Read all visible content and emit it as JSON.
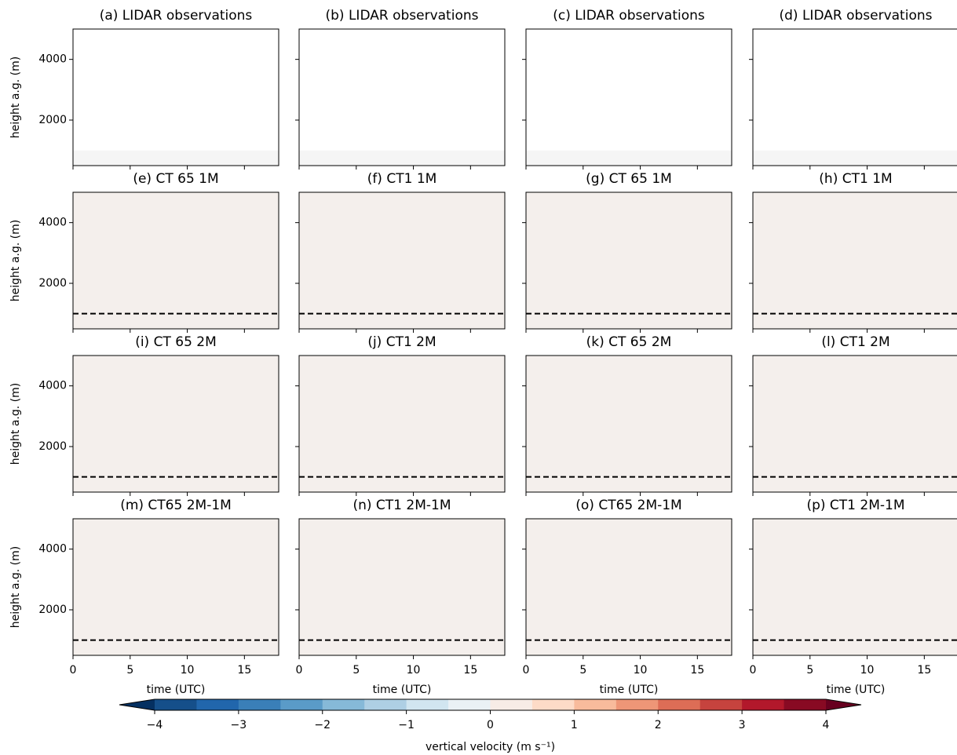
{
  "chart_data": {
    "type": "contour",
    "xlabel": "time (UTC)",
    "ylabel": "height a.g. (m)",
    "xlim": [
      0,
      18
    ],
    "ylim": [
      500,
      5000
    ],
    "xticks": [
      0,
      5,
      10,
      15
    ],
    "yticks": [
      2000,
      4000
    ],
    "panels": [
      {
        "title": "(a) LIDAR observations"
      },
      {
        "title": "(b) LIDAR observations"
      },
      {
        "title": "(c) LIDAR observations"
      },
      {
        "title": "(d) LIDAR observations"
      },
      {
        "title": "(e) CT 65 1M",
        "hline": 1000
      },
      {
        "title": "(f) CT1 1M",
        "hline": 1000
      },
      {
        "title": "(g) CT 65 1M",
        "hline": 1000
      },
      {
        "title": "(h) CT1 1M",
        "hline": 1000
      },
      {
        "title": "(i) CT 65 2M",
        "hline": 1000
      },
      {
        "title": "(j) CT1 2M",
        "hline": 1000
      },
      {
        "title": "(k) CT 65 2M",
        "hline": 1000
      },
      {
        "title": "(l) CT1 2M",
        "hline": 1000
      },
      {
        "title": "(m) CT65 2M-1M",
        "hline": 1000
      },
      {
        "title": "(n) CT1 2M-1M",
        "hline": 1000
      },
      {
        "title": "(o) CT65 2M-1M",
        "hline": 1000
      },
      {
        "title": "(p) CT1 2M-1M",
        "hline": 1000
      }
    ],
    "colorbar": {
      "label": "vertical velocity (m s⁻¹)",
      "levels": [
        -4,
        -3.5,
        -3,
        -2.5,
        -2,
        -1.5,
        -1,
        -0.5,
        0,
        0.5,
        1,
        1.5,
        2,
        2.5,
        3,
        3.5,
        4
      ],
      "colors": [
        "#154f8a",
        "#2166ac",
        "#3a7fb8",
        "#5a9bc8",
        "#86b9d8",
        "#aecfe4",
        "#d1e5f0",
        "#eaf1f5",
        "#f7ece6",
        "#fddbc7",
        "#f8bb9c",
        "#ee9677",
        "#dd6d56",
        "#c6433e",
        "#b2182b",
        "#880a23"
      ],
      "extend_colors": [
        "#053061",
        "#67001f"
      ],
      "ticks": [
        {
          "value": -4,
          "label": "−4"
        },
        {
          "value": -3,
          "label": "−3"
        },
        {
          "value": -2,
          "label": "−2"
        },
        {
          "value": -1,
          "label": "−1"
        },
        0,
        1,
        2,
        3,
        4
      ]
    }
  }
}
